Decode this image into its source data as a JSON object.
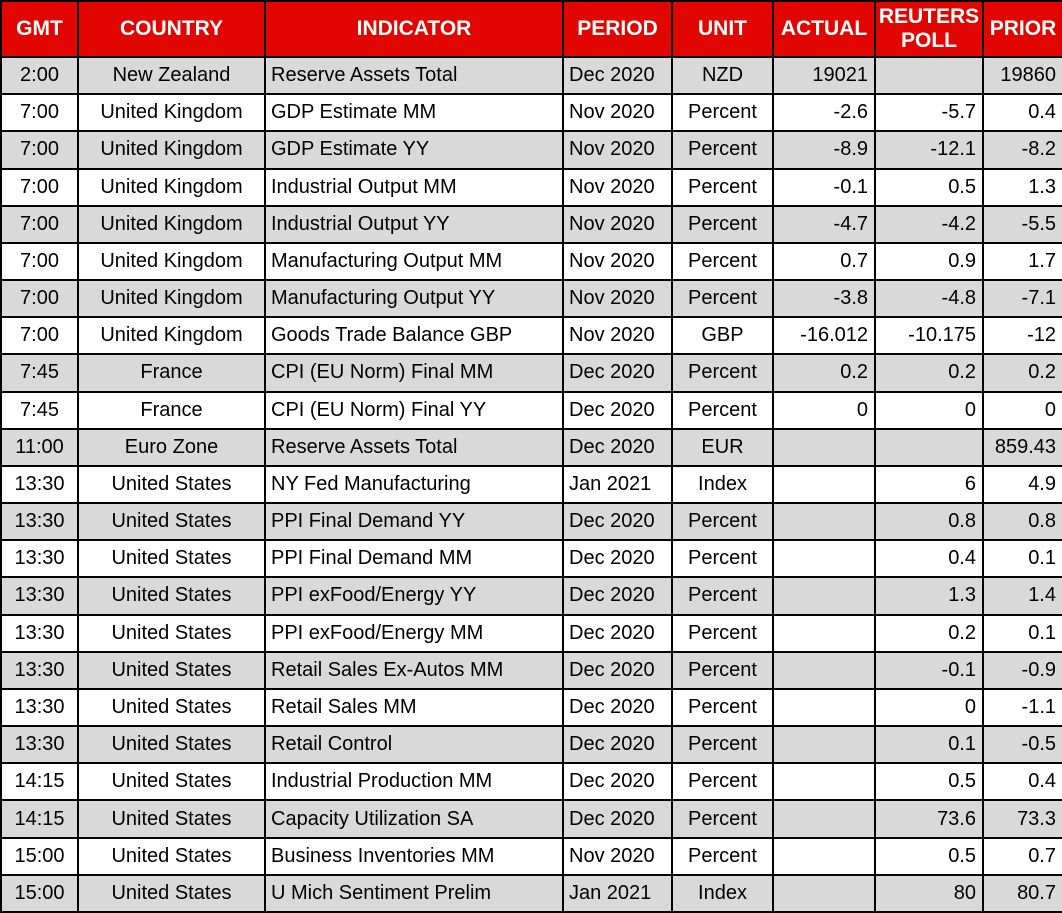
{
  "chart_data": {
    "type": "table",
    "columns": [
      {
        "label": "GMT",
        "align": "center"
      },
      {
        "label": "COUNTRY",
        "align": "center"
      },
      {
        "label": "INDICATOR",
        "align": "left"
      },
      {
        "label": "PERIOD",
        "align": "left"
      },
      {
        "label": "UNIT",
        "align": "center"
      },
      {
        "label": "ACTUAL",
        "align": "right"
      },
      {
        "label": "REUTERS POLL",
        "align": "right"
      },
      {
        "label": "PRIOR",
        "align": "right"
      }
    ],
    "rows": [
      [
        "2:00",
        "New Zealand",
        "Reserve Assets Total",
        "Dec 2020",
        "NZD",
        "19021",
        "",
        "19860"
      ],
      [
        "7:00",
        "United Kingdom",
        "GDP Estimate MM",
        "Nov 2020",
        "Percent",
        "-2.6",
        "-5.7",
        "0.4"
      ],
      [
        "7:00",
        "United Kingdom",
        "GDP Estimate YY",
        "Nov 2020",
        "Percent",
        "-8.9",
        "-12.1",
        "-8.2"
      ],
      [
        "7:00",
        "United Kingdom",
        "Industrial Output MM",
        "Nov 2020",
        "Percent",
        "-0.1",
        "0.5",
        "1.3"
      ],
      [
        "7:00",
        "United Kingdom",
        "Industrial Output YY",
        "Nov 2020",
        "Percent",
        "-4.7",
        "-4.2",
        "-5.5"
      ],
      [
        "7:00",
        "United Kingdom",
        "Manufacturing Output MM",
        "Nov 2020",
        "Percent",
        "0.7",
        "0.9",
        "1.7"
      ],
      [
        "7:00",
        "United Kingdom",
        "Manufacturing Output YY",
        "Nov 2020",
        "Percent",
        "-3.8",
        "-4.8",
        "-7.1"
      ],
      [
        "7:00",
        "United Kingdom",
        "Goods Trade Balance GBP",
        "Nov 2020",
        "GBP",
        "-16.012",
        "-10.175",
        "-12"
      ],
      [
        "7:45",
        "France",
        "CPI (EU Norm) Final MM",
        "Dec 2020",
        "Percent",
        "0.2",
        "0.2",
        "0.2"
      ],
      [
        "7:45",
        "France",
        "CPI (EU Norm) Final YY",
        "Dec 2020",
        "Percent",
        "0",
        "0",
        "0"
      ],
      [
        "11:00",
        "Euro Zone",
        "Reserve Assets Total",
        "Dec 2020",
        "EUR",
        "",
        "",
        "859.43"
      ],
      [
        "13:30",
        "United States",
        "NY Fed Manufacturing",
        "Jan 2021",
        "Index",
        "",
        "6",
        "4.9"
      ],
      [
        "13:30",
        "United States",
        "PPI Final Demand YY",
        "Dec 2020",
        "Percent",
        "",
        "0.8",
        "0.8"
      ],
      [
        "13:30",
        "United States",
        "PPI Final Demand MM",
        "Dec 2020",
        "Percent",
        "",
        "0.4",
        "0.1"
      ],
      [
        "13:30",
        "United States",
        "PPI exFood/Energy YY",
        "Dec 2020",
        "Percent",
        "",
        "1.3",
        "1.4"
      ],
      [
        "13:30",
        "United States",
        "PPI exFood/Energy MM",
        "Dec 2020",
        "Percent",
        "",
        "0.2",
        "0.1"
      ],
      [
        "13:30",
        "United States",
        "Retail Sales Ex-Autos MM",
        "Dec 2020",
        "Percent",
        "",
        "-0.1",
        "-0.9"
      ],
      [
        "13:30",
        "United States",
        "Retail Sales MM",
        "Dec 2020",
        "Percent",
        "",
        "0",
        "-1.1"
      ],
      [
        "13:30",
        "United States",
        "Retail Control",
        "Dec 2020",
        "Percent",
        "",
        "0.1",
        "-0.5"
      ],
      [
        "14:15",
        "United States",
        "Industrial Production MM",
        "Dec 2020",
        "Percent",
        "",
        "0.5",
        "0.4"
      ],
      [
        "14:15",
        "United States",
        "Capacity Utilization SA",
        "Dec 2020",
        "Percent",
        "",
        "73.6",
        "73.3"
      ],
      [
        "15:00",
        "United States",
        "Business Inventories MM",
        "Nov 2020",
        "Percent",
        "",
        "0.5",
        "0.7"
      ],
      [
        "15:00",
        "United States",
        "U Mich Sentiment Prelim",
        "Jan 2021",
        "Index",
        "",
        "80",
        "80.7"
      ]
    ]
  },
  "colors": {
    "header_bg": "#e10600",
    "header_text": "#ffffff",
    "row_shaded_bg": "#d9d9d9",
    "row_plain_bg": "#ffffff",
    "grid_border": "#000000",
    "cell_text": "#000000"
  }
}
